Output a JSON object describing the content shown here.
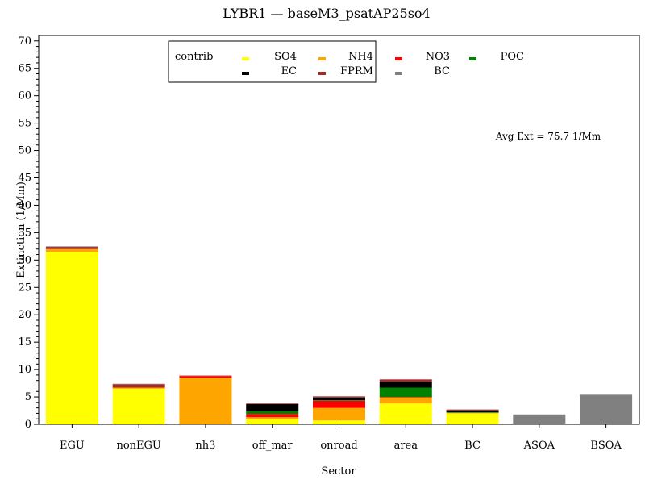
{
  "chart_data": {
    "type": "bar",
    "stacked": true,
    "title": "LYBR1 — baseM3_psatAP25so4",
    "xlabel": "Sector",
    "ylabel": "Extinction (1/Mm)",
    "ylim": [
      0,
      71
    ],
    "yticks": [
      0,
      5,
      10,
      15,
      20,
      25,
      30,
      35,
      40,
      45,
      50,
      55,
      60,
      65,
      70
    ],
    "ytick_labels": [
      "0",
      "5",
      "10",
      "15",
      "20",
      "25",
      "30",
      "35",
      "40",
      "45",
      "50",
      "55",
      "60",
      "65",
      "70"
    ],
    "categories": [
      "EGU",
      "nonEGU",
      "nh3",
      "off_mar",
      "onroad",
      "area",
      "BC",
      "ASOA",
      "BSOA"
    ],
    "legend": {
      "title": "contrib",
      "placement": "top-center"
    },
    "annotation": "Avg Ext =  75.7 1/Mm",
    "series": [
      {
        "name": "SO4",
        "color": "#ffff00",
        "values": [
          31.5,
          6.5,
          0.0,
          1.0,
          0.7,
          3.8,
          2.0,
          0.0,
          0.0
        ]
      },
      {
        "name": "NH4",
        "color": "#ffa500",
        "values": [
          0.5,
          0.2,
          8.5,
          0.3,
          2.3,
          1.1,
          0.1,
          0.0,
          0.0
        ]
      },
      {
        "name": "NO3",
        "color": "#ff0000",
        "values": [
          0.0,
          0.0,
          0.3,
          0.6,
          1.3,
          0.1,
          0.0,
          0.0,
          0.0
        ]
      },
      {
        "name": "POC",
        "color": "#008000",
        "values": [
          0.0,
          0.0,
          0.0,
          0.5,
          0.1,
          1.7,
          0.1,
          0.0,
          0.0
        ]
      },
      {
        "name": "EC",
        "color": "#000000",
        "values": [
          0.0,
          0.0,
          0.0,
          1.3,
          0.5,
          1.1,
          0.3,
          0.0,
          0.0
        ]
      },
      {
        "name": "FPRM",
        "color": "#a52a2a",
        "values": [
          0.4,
          0.6,
          0.1,
          0.1,
          0.2,
          0.4,
          0.2,
          0.0,
          0.0
        ]
      },
      {
        "name": "BC",
        "color": "#808080",
        "values": [
          0.1,
          0.1,
          0.0,
          0.0,
          0.0,
          0.0,
          0.0,
          1.8,
          5.4
        ]
      }
    ]
  }
}
